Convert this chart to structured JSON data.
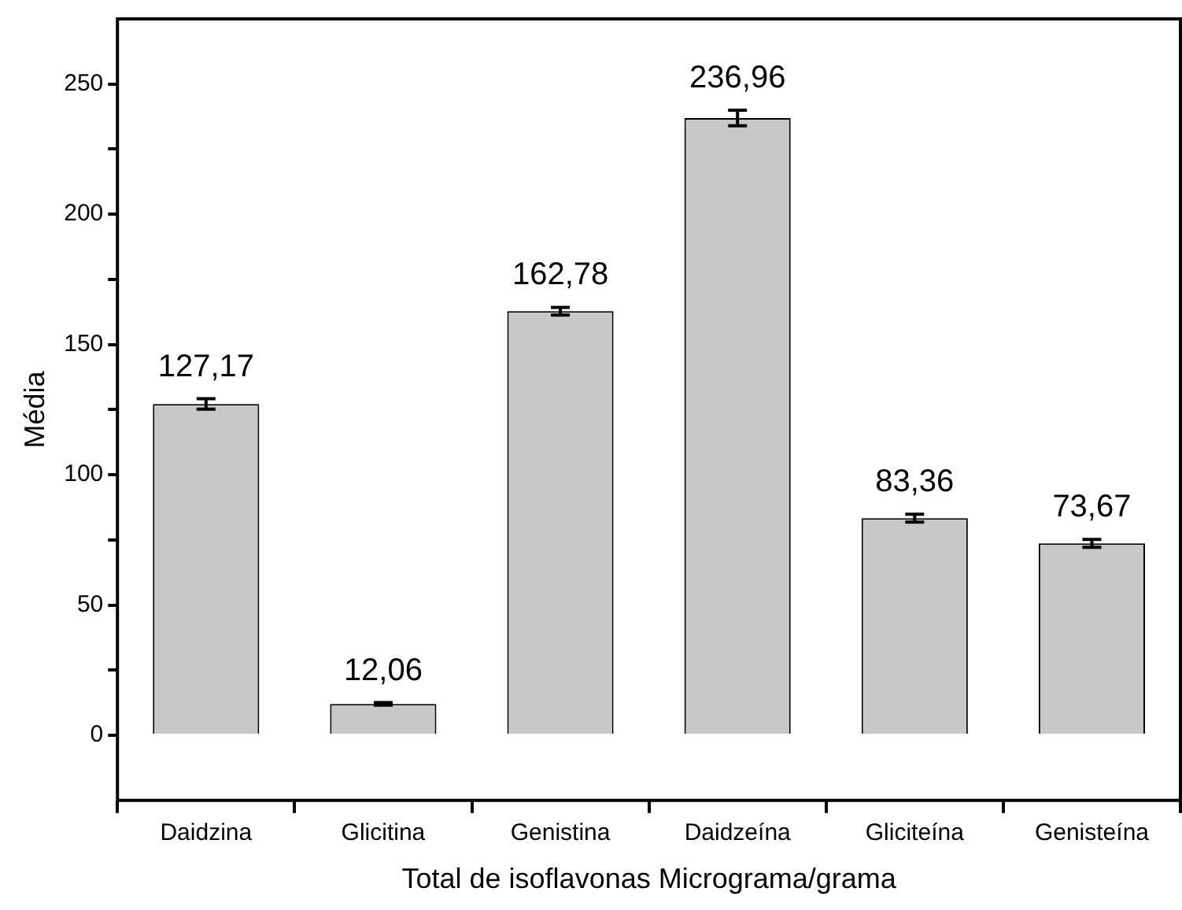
{
  "chart_data": {
    "type": "bar",
    "xlabel": "Total de isoflavonas Micrograma/grama",
    "ylabel": "Média",
    "categories": [
      "Daidzina",
      "Glicitina",
      "Genistina",
      "Daidzeína",
      "Gliciteína",
      "Genisteína"
    ],
    "values": [
      127.17,
      12.06,
      162.78,
      236.96,
      83.36,
      73.67
    ],
    "value_labels": [
      "127,17",
      "12,06",
      "162,78",
      "236,96",
      "83,36",
      "73,67"
    ],
    "errors": [
      2,
      0.5,
      1.5,
      3,
      1.5,
      1.5
    ],
    "color": "#c8c8c8",
    "ylim": [
      -25,
      275
    ],
    "yticks": [
      0,
      {
        "value": 25,
        "label": null
      },
      50,
      {
        "value": 75,
        "label": null
      },
      100,
      {
        "value": 125,
        "label": null
      },
      150,
      {
        "value": 175,
        "label": null
      },
      200,
      {
        "value": 225,
        "label": null
      },
      250
    ],
    "grid": false,
    "legend": false
  }
}
